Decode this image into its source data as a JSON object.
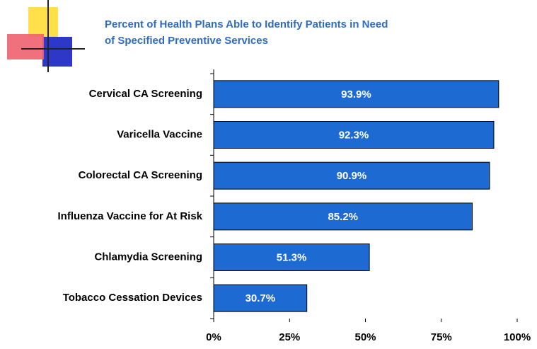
{
  "chart_data": {
    "type": "bar",
    "orientation": "horizontal",
    "title": [
      "Percent of Health Plans Able to Identify Patients in Need",
      "of Specified Preventive Services"
    ],
    "categories": [
      "Cervical CA Screening",
      "Varicella Vaccine",
      "Colorectal CA Screening",
      "Influenza Vaccine for At Risk",
      "Chlamydia Screening",
      "Tobacco Cessation Devices"
    ],
    "values": [
      93.9,
      92.3,
      90.9,
      85.2,
      51.3,
      30.7
    ],
    "value_labels": [
      "93.9%",
      "92.3%",
      "90.9%",
      "85.2%",
      "51.3%",
      "30.7%"
    ],
    "color": "#1d6bd2",
    "xlim": [
      0,
      100
    ],
    "xticks": [
      {
        "value": 0,
        "label": "0%"
      },
      {
        "value": 25,
        "label": "25%"
      },
      {
        "value": 50,
        "label": "50%"
      },
      {
        "value": 75,
        "label": "75%"
      },
      {
        "value": 100,
        "label": "100%"
      }
    ]
  }
}
